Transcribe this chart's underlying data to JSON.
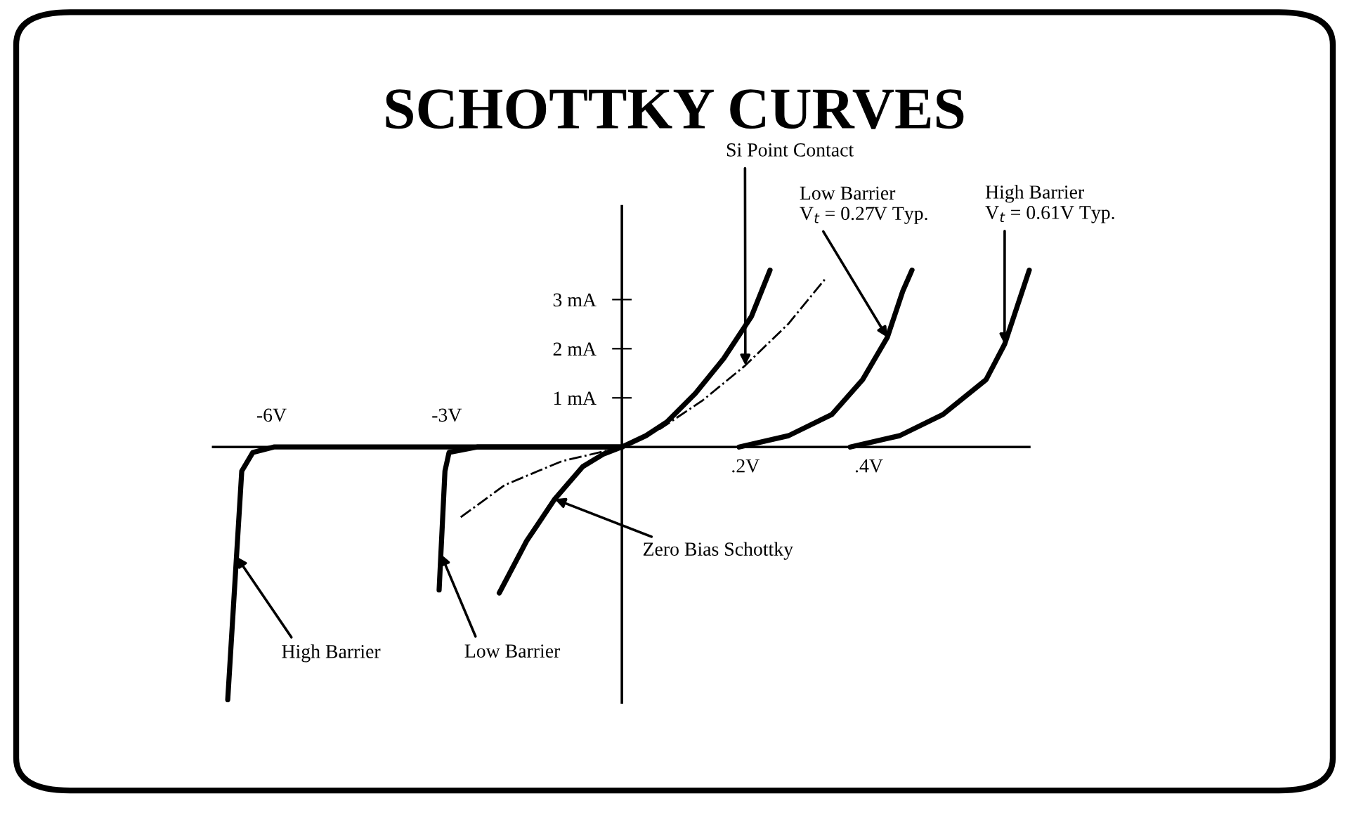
{
  "chart_data": [
    {
      "type": "line",
      "title": "SCHOTTKY CURVES",
      "xlim": [
        -7,
        0
      ],
      "ylim": [
        -5.2,
        4.9
      ],
      "tick_labels": "x",
      "xticks": [
        {
          "value": -6,
          "label": "-6V"
        },
        {
          "value": -3,
          "label": "-3V"
        }
      ],
      "marker": "none",
      "series": [
        {
          "color": "#000000",
          "line_style": "solid",
          "x": [
            -2.1,
            -1.63,
            -1.15,
            -0.67,
            -0.31,
            0
          ],
          "values": [
            -2.97,
            -1.91,
            -1.06,
            -0.4,
            -0.14,
            0
          ]
        },
        {
          "color": "#000000",
          "line_style": "dashdot",
          "x": [
            -2.76,
            -2.0,
            -1.03,
            -0.31,
            0
          ],
          "values": [
            -1.43,
            -0.77,
            -0.29,
            -0.09,
            0
          ]
        },
        {
          "color": "#000000",
          "line_style": "solid",
          "x": [
            0,
            -2.48,
            -2.96,
            -3.03,
            -3.1,
            -3.13
          ],
          "values": [
            0,
            0,
            -0.11,
            -0.49,
            -2.18,
            -2.91
          ]
        },
        {
          "color": "#000000",
          "line_style": "solid",
          "x": [
            0,
            -5.96,
            -6.32,
            -6.51,
            -6.6,
            -6.75
          ],
          "values": [
            0,
            0,
            -0.11,
            -0.49,
            -2.23,
            -5.14
          ]
        }
      ],
      "annotations": [
        {
          "text": "Zero Bias Schottky",
          "x": -1.15,
          "y": -1.06
        },
        {
          "text": "High Barrier",
          "x": -6.6,
          "y": -2.23
        },
        {
          "text": "Low Barrier",
          "x": -3.1,
          "y": -2.18
        }
      ]
    },
    {
      "type": "line",
      "xlim": [
        0,
        0.66
      ],
      "ylim": [
        -5.2,
        4.9
      ],
      "xticks": [
        {
          "value": 0.2,
          "label": ".2V"
        },
        {
          "value": 0.4,
          "label": ".4V"
        }
      ],
      "yticks": [
        {
          "value": 1,
          "label": "1 mA"
        },
        {
          "value": 2,
          "label": "2 mA"
        },
        {
          "value": 3,
          "label": "3 mA"
        }
      ],
      "marker": "none",
      "series": [
        {
          "color": "#000000",
          "line_style": "solid",
          "x": [
            0,
            0.039,
            0.073,
            0.119,
            0.165,
            0.21,
            0.24
          ],
          "values": [
            0,
            0.23,
            0.51,
            1.09,
            1.8,
            2.66,
            3.6
          ]
        },
        {
          "color": "#000000",
          "line_style": "dashdot",
          "x": [
            0,
            0.062,
            0.13,
            0.2,
            0.27,
            0.33
          ],
          "values": [
            0,
            0.37,
            0.94,
            1.66,
            2.51,
            3.43
          ]
        },
        {
          "color": "#000000",
          "line_style": "solid",
          "x": [
            0.19,
            0.27,
            0.34,
            0.39,
            0.43,
            0.455,
            0.47
          ],
          "values": [
            0,
            0.23,
            0.66,
            1.37,
            2.23,
            3.17,
            3.6
          ]
        },
        {
          "color": "#000000",
          "line_style": "solid",
          "x": [
            0.37,
            0.45,
            0.52,
            0.59,
            0.62,
            0.66
          ],
          "values": [
            0,
            0.23,
            0.66,
            1.37,
            2.09,
            3.6
          ]
        }
      ],
      "annotations": [
        {
          "text": "Si Point Contact",
          "x": 0.2,
          "y": 1.66
        },
        {
          "text": "Low Barrier\nV$_{t}$ = 0.27V Typ.",
          "x": 0.43,
          "y": 2.23
        },
        {
          "text": "High Barrier\nV$_{t}$ = 0.61V Typ.",
          "x": 0.62,
          "y": 2.09
        }
      ]
    }
  ]
}
